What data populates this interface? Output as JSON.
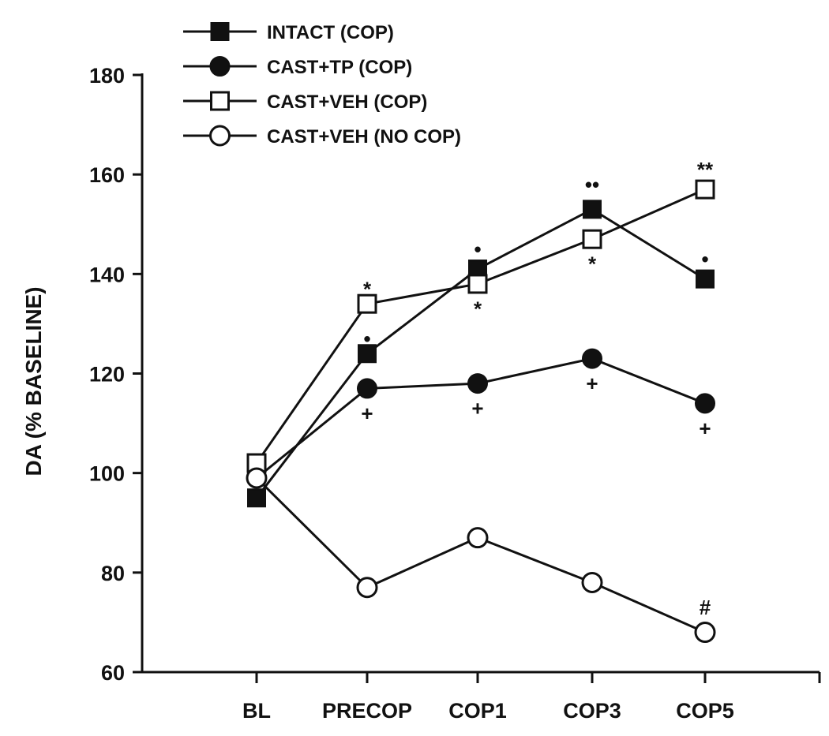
{
  "chart_data": {
    "type": "line",
    "categories": [
      "BL",
      "PRECOP",
      "COP1",
      "COP3",
      "COP5"
    ],
    "ylabel": "DA (% BASELINE)",
    "xlabel": "",
    "ylim": [
      60,
      180
    ],
    "yticks": [
      60,
      80,
      100,
      120,
      140,
      160,
      180
    ],
    "grid": false,
    "legend_position": "top-left",
    "series": [
      {
        "name": "INTACT (COP)",
        "marker": "square-filled",
        "values": [
          95,
          124,
          141,
          153,
          139
        ]
      },
      {
        "name": "CAST+TP (COP)",
        "marker": "circle-filled",
        "values": [
          99,
          117,
          118,
          123,
          114
        ]
      },
      {
        "name": "CAST+VEH (COP)",
        "marker": "square-open",
        "values": [
          102,
          134,
          138,
          147,
          157
        ]
      },
      {
        "name": "CAST+VEH (NO COP)",
        "marker": "circle-open",
        "values": [
          99,
          77,
          87,
          78,
          68
        ]
      }
    ],
    "annotations": [
      {
        "category": "PRECOP",
        "y": 127,
        "text": "•"
      },
      {
        "category": "PRECOP",
        "y": 137,
        "text": "*"
      },
      {
        "category": "PRECOP",
        "y": 112,
        "text": "+"
      },
      {
        "category": "COP1",
        "y": 145,
        "text": "•"
      },
      {
        "category": "COP1",
        "y": 133,
        "text": "*"
      },
      {
        "category": "COP1",
        "y": 113,
        "text": "+"
      },
      {
        "category": "COP3",
        "y": 158,
        "text": "••"
      },
      {
        "category": "COP3",
        "y": 142,
        "text": "*"
      },
      {
        "category": "COP3",
        "y": 118,
        "text": "+"
      },
      {
        "category": "COP5",
        "y": 161,
        "text": "**"
      },
      {
        "category": "COP5",
        "y": 143,
        "text": "•"
      },
      {
        "category": "COP5",
        "y": 109,
        "text": "+"
      },
      {
        "category": "COP5",
        "y": 73,
        "text": "#"
      }
    ]
  }
}
